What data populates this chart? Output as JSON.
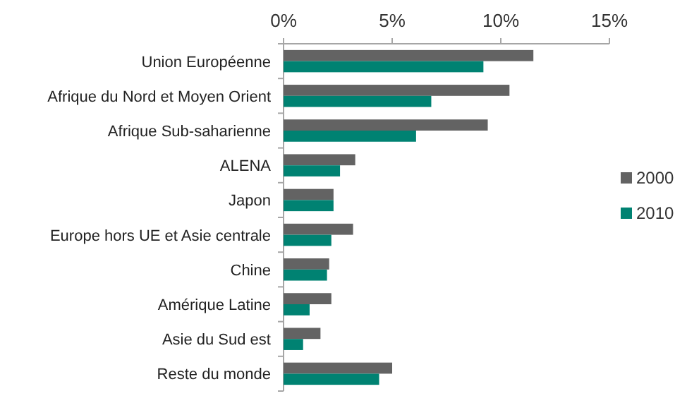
{
  "chart_data": {
    "type": "bar",
    "orientation": "horizontal",
    "categories": [
      "Union Européenne",
      "Afrique du Nord et Moyen Orient",
      "Afrique Sub-saharienne",
      "ALENA",
      "Japon",
      "Europe hors UE et Asie centrale",
      "Chine",
      "Amérique Latine",
      "Asie du Sud est",
      "Reste du monde"
    ],
    "series": [
      {
        "name": "2000",
        "color": "#636363",
        "values": [
          11.5,
          10.4,
          9.4,
          3.3,
          2.3,
          3.2,
          2.1,
          2.2,
          1.7,
          5.0
        ]
      },
      {
        "name": "2010",
        "color": "#008272",
        "values": [
          9.2,
          6.8,
          6.1,
          2.6,
          2.3,
          2.2,
          2.0,
          1.2,
          0.9,
          4.4
        ]
      }
    ],
    "xlim": [
      0,
      15
    ],
    "xticks": [
      {
        "value": 0,
        "label": "0%"
      },
      {
        "value": 5,
        "label": "5%"
      },
      {
        "value": 10,
        "label": "10%"
      },
      {
        "value": 15,
        "label": "15%"
      }
    ],
    "legend": "right",
    "grid": false
  }
}
